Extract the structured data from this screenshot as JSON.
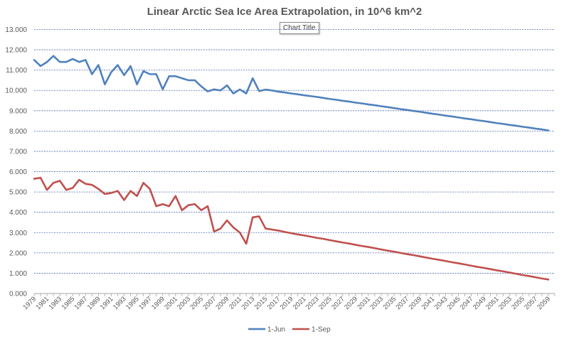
{
  "tooltip": "Chart Title",
  "chart_data": {
    "type": "line",
    "title": "Linear Arctic Sea Ice Area Extrapolation, in 10^6 km^2",
    "xlabel": "",
    "ylabel": "",
    "ylim": [
      0,
      13
    ],
    "y_ticks": [
      "0.000",
      "1.000",
      "2.000",
      "3.000",
      "4.000",
      "5.000",
      "6.000",
      "7.000",
      "8.000",
      "9.000",
      "10.000",
      "11.000",
      "12.000",
      "13.000"
    ],
    "x_tick_labels": [
      "1979",
      "1981",
      "1983",
      "1985",
      "1987",
      "1989",
      "1991",
      "1993",
      "1995",
      "1997",
      "1999",
      "2001",
      "2003",
      "2005",
      "2007",
      "2009",
      "2011",
      "2013",
      "2015",
      "2017",
      "2019",
      "2021",
      "2023",
      "2025",
      "2027",
      "2029",
      "2031",
      "2033",
      "2035",
      "2037",
      "2039",
      "2041",
      "2043",
      "2045",
      "2047",
      "2049",
      "2051",
      "2053",
      "2055",
      "2057",
      "2059"
    ],
    "x_start": 1979,
    "x_end": 2060,
    "grid": true,
    "legend_position": "bottom",
    "colors": {
      "1-Jun": "#4F81BD",
      "1-Sep": "#C0504D"
    },
    "series": [
      {
        "name": "1-Jun",
        "values": [
          11.5,
          11.2,
          11.4,
          11.7,
          11.4,
          11.4,
          11.55,
          11.4,
          11.5,
          10.8,
          11.25,
          10.3,
          10.9,
          11.25,
          10.75,
          11.2,
          10.3,
          10.95,
          10.8,
          10.8,
          10.05,
          10.7,
          10.7,
          10.6,
          10.5,
          10.5,
          10.2,
          9.95,
          10.05,
          10.0,
          10.25,
          9.85,
          10.05,
          9.85,
          10.6,
          9.97,
          10.04,
          10.0,
          9.94,
          9.9,
          9.85,
          9.81,
          9.76,
          9.72,
          9.68,
          9.63,
          9.58,
          9.54,
          9.49,
          9.45,
          9.4,
          9.36,
          9.31,
          9.27,
          9.22,
          9.18,
          9.13,
          9.08,
          9.04,
          8.99,
          8.95,
          8.9,
          8.85,
          8.81,
          8.76,
          8.72,
          8.67,
          8.62,
          8.58,
          8.53,
          8.49,
          8.44,
          8.39,
          8.35,
          8.3,
          8.26,
          8.21,
          8.17,
          8.12,
          8.08,
          8.03
        ]
      },
      {
        "name": "1-Sep",
        "values": [
          5.65,
          5.7,
          5.1,
          5.45,
          5.55,
          5.1,
          5.2,
          5.6,
          5.4,
          5.35,
          5.15,
          4.9,
          4.95,
          5.05,
          4.6,
          5.05,
          4.8,
          5.45,
          5.15,
          4.3,
          4.4,
          4.3,
          4.8,
          4.1,
          4.35,
          4.4,
          4.1,
          4.3,
          3.05,
          3.2,
          3.6,
          3.25,
          3.0,
          2.45,
          3.75,
          3.8,
          3.2,
          3.15,
          3.1,
          3.03,
          2.97,
          2.91,
          2.86,
          2.8,
          2.74,
          2.69,
          2.63,
          2.57,
          2.51,
          2.46,
          2.4,
          2.34,
          2.29,
          2.23,
          2.17,
          2.11,
          2.06,
          2.0,
          1.94,
          1.89,
          1.83,
          1.77,
          1.71,
          1.66,
          1.6,
          1.54,
          1.49,
          1.43,
          1.37,
          1.31,
          1.26,
          1.2,
          1.14,
          1.09,
          1.03,
          0.97,
          0.91,
          0.86,
          0.8,
          0.74,
          0.69
        ]
      }
    ]
  }
}
